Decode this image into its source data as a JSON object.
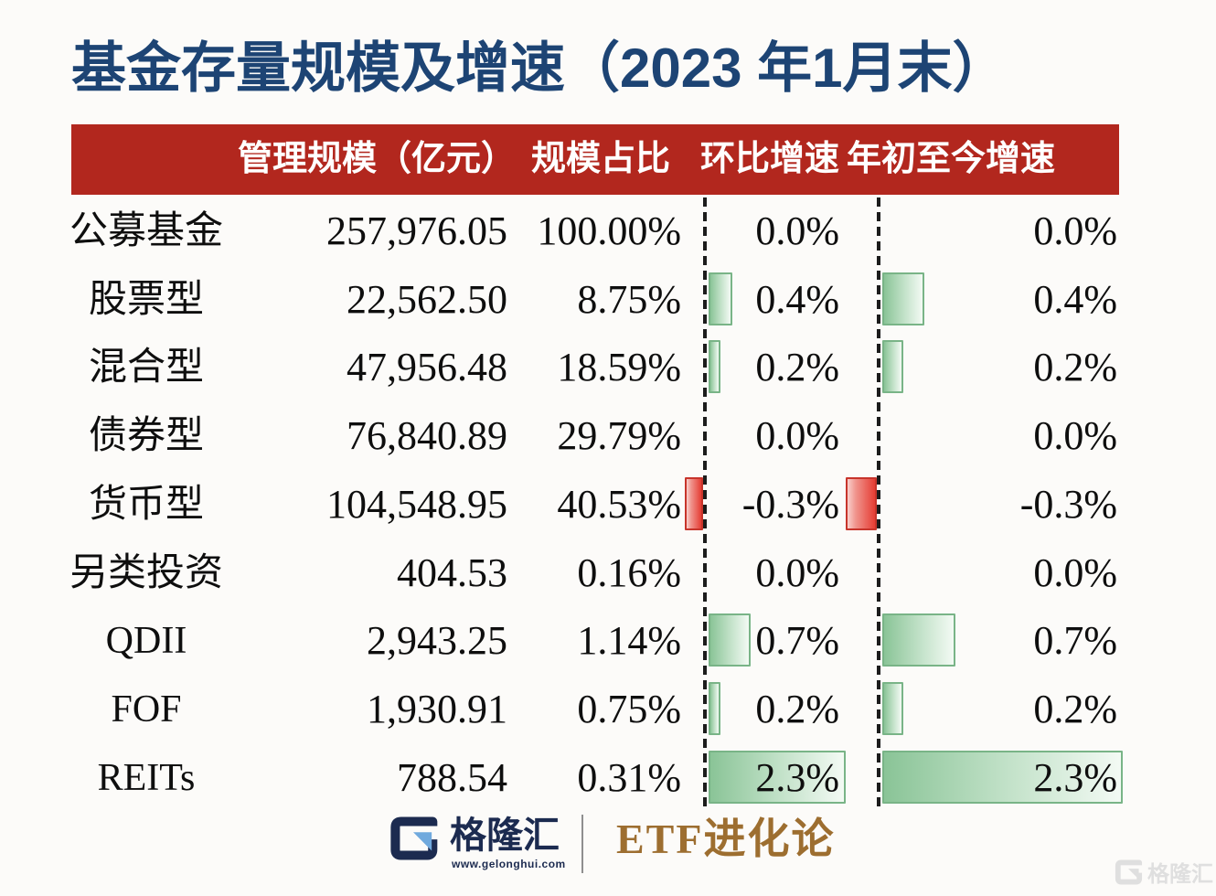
{
  "title": "基金存量规模及增速（2023 年1月末）",
  "table": {
    "headers": [
      "管理规模（亿元）",
      "规模占比",
      "环比增速",
      "年初至今增速"
    ],
    "rows": [
      {
        "label": "公募基金",
        "scale": "257,976.05",
        "share": "100.00%",
        "mom": "0.0%",
        "ytd": "0.0%"
      },
      {
        "label": "股票型",
        "scale": "22,562.50",
        "share": "8.75%",
        "mom": "0.4%",
        "ytd": "0.4%"
      },
      {
        "label": "混合型",
        "scale": "47,956.48",
        "share": "18.59%",
        "mom": "0.2%",
        "ytd": "0.2%"
      },
      {
        "label": "债券型",
        "scale": "76,840.89",
        "share": "29.79%",
        "mom": "0.0%",
        "ytd": "0.0%"
      },
      {
        "label": "货币型",
        "scale": "104,548.95",
        "share": "40.53%",
        "mom": "-0.3%",
        "ytd": "-0.3%"
      },
      {
        "label": "另类投资",
        "scale": "404.53",
        "share": "0.16%",
        "mom": "0.0%",
        "ytd": "0.0%"
      },
      {
        "label": "QDII",
        "scale": "2,943.25",
        "share": "1.14%",
        "mom": "0.7%",
        "ytd": "0.7%"
      },
      {
        "label": "FOF",
        "scale": "1,930.91",
        "share": "0.75%",
        "mom": "0.2%",
        "ytd": "0.2%"
      },
      {
        "label": "REITs",
        "scale": "788.54",
        "share": "0.31%",
        "mom": "2.3%",
        "ytd": "2.3%"
      }
    ]
  },
  "chart_data": {
    "type": "table",
    "title": "基金存量规模及增速（2023 年1月末）",
    "categories": [
      "公募基金",
      "股票型",
      "混合型",
      "债券型",
      "货币型",
      "另类投资",
      "QDII",
      "FOF",
      "REITs"
    ],
    "series": [
      {
        "name": "管理规模（亿元）",
        "values": [
          257976.05,
          22562.5,
          47956.48,
          76840.89,
          104548.95,
          404.53,
          2943.25,
          1930.91,
          788.54
        ]
      },
      {
        "name": "规模占比",
        "unit": "%",
        "values": [
          100.0,
          8.75,
          18.59,
          29.79,
          40.53,
          0.16,
          1.14,
          0.75,
          0.31
        ]
      },
      {
        "name": "环比增速",
        "unit": "%",
        "display": "data-bar",
        "values": [
          0.0,
          0.4,
          0.2,
          0.0,
          -0.3,
          0.0,
          0.7,
          0.2,
          2.3
        ]
      },
      {
        "name": "年初至今增速",
        "unit": "%",
        "display": "data-bar",
        "values": [
          0.0,
          0.4,
          0.2,
          0.0,
          -0.3,
          0.0,
          0.7,
          0.2,
          2.3
        ]
      }
    ],
    "bar_style": {
      "positive_color": "#8ac497",
      "negative_color": "#e53d34",
      "axis": "dashed vertical zero line per bar column"
    }
  },
  "footer": {
    "brand": "格隆汇",
    "brand_url": "www.gelonghui.com",
    "column_name": "ETF进化论"
  },
  "watermark": {
    "text": "格隆汇"
  },
  "colors": {
    "title_blue": "#1d4474",
    "header_red": "#b2271e",
    "text_black": "#0e0e0e",
    "green_solid": "#8ac497",
    "green_mid": "#c5e3cb",
    "green_light": "#f3faf4",
    "green_border": "#79b487",
    "red_solid": "#e53d34",
    "red_mid": "#f0948d",
    "red_light": "#f9cfcb",
    "red_border": "#c7342b",
    "logo_navy": "#1c2b50",
    "logo_blue": "#70a9dd",
    "gold": "#9d6e30",
    "watermark_grey": "#dfdfdf"
  }
}
